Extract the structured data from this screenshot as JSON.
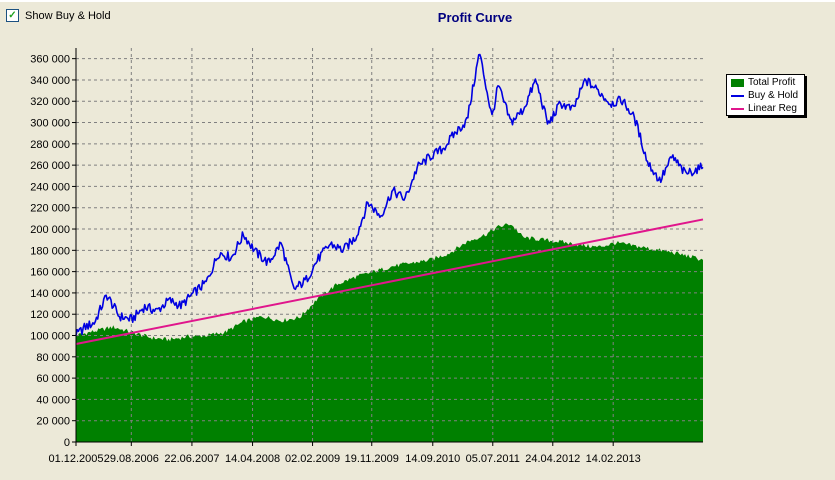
{
  "controls": {
    "show_buy_hold_label": "Show Buy & Hold",
    "show_buy_hold_checked": true,
    "check_mark": "✓"
  },
  "colors": {
    "background": "#ECE9D8",
    "plot_background": "#ECE9D8",
    "total_profit": "#008000",
    "buy_hold": "#0000E0",
    "linear_reg": "#E0168C",
    "grid": "#808080",
    "title": "#000080"
  },
  "chart_data": {
    "type": "area",
    "title": "Profit Curve",
    "xlabel": "",
    "ylabel": "",
    "xlim": [
      "2005-12-01",
      "2014-04-30"
    ],
    "ylim": [
      0,
      370000
    ],
    "y_ticks": [
      0,
      20000,
      40000,
      60000,
      80000,
      100000,
      120000,
      140000,
      160000,
      180000,
      200000,
      220000,
      240000,
      260000,
      280000,
      300000,
      320000,
      340000,
      360000
    ],
    "y_tick_labels": [
      "0",
      "20 000",
      "40 000",
      "60 000",
      "80 000",
      "100 000",
      "120 000",
      "140 000",
      "160 000",
      "180 000",
      "200 000",
      "220 000",
      "240 000",
      "260 000",
      "280 000",
      "300 000",
      "320 000",
      "340 000",
      "360 000"
    ],
    "x_ticks": [
      "2005-12-01",
      "2006-08-29",
      "2007-06-22",
      "2008-04-14",
      "2009-02-02",
      "2009-11-19",
      "2010-09-14",
      "2011-07-05",
      "2012-04-24",
      "2013-02-14"
    ],
    "x_tick_labels": [
      "01.12.2005",
      "29.08.2006",
      "22.06.2007",
      "14.04.2008",
      "02.02.2009",
      "19.11.2009",
      "14.09.2010",
      "05.07.2011",
      "24.04.2012",
      "14.02.2013"
    ],
    "grid": true,
    "legend_position": "right",
    "series": [
      {
        "name": "Total Profit",
        "style": "area",
        "x": [
          "2005-12-01",
          "2006-03-01",
          "2006-06-01",
          "2006-09-01",
          "2006-12-01",
          "2007-03-01",
          "2007-06-01",
          "2007-09-01",
          "2007-12-01",
          "2008-03-01",
          "2008-06-01",
          "2008-09-01",
          "2008-12-01",
          "2009-03-01",
          "2009-06-01",
          "2009-09-01",
          "2009-12-01",
          "2010-03-01",
          "2010-06-01",
          "2010-09-01",
          "2010-12-01",
          "2011-03-01",
          "2011-06-01",
          "2011-08-01",
          "2011-10-01",
          "2011-12-01",
          "2012-03-01",
          "2012-06-01",
          "2012-09-01",
          "2012-12-01",
          "2013-03-01",
          "2013-06-01",
          "2013-09-01",
          "2013-12-01",
          "2014-03-01",
          "2014-04-30"
        ],
        "values": [
          100000,
          104000,
          108000,
          103000,
          98000,
          96000,
          99000,
          100000,
          103000,
          113000,
          118000,
          114000,
          117000,
          135000,
          148000,
          155000,
          160000,
          165000,
          168000,
          171000,
          177000,
          188000,
          195000,
          202000,
          205000,
          192000,
          190000,
          188000,
          185000,
          183000,
          187000,
          184000,
          181000,
          178000,
          174000,
          171000
        ]
      },
      {
        "name": "Buy & Hold",
        "style": "line",
        "x": [
          "2005-12-01",
          "2006-01-15",
          "2006-03-01",
          "2006-05-01",
          "2006-07-01",
          "2006-09-01",
          "2006-11-01",
          "2007-01-01",
          "2007-03-01",
          "2007-05-01",
          "2007-07-01",
          "2007-09-01",
          "2007-11-01",
          "2008-01-01",
          "2008-03-01",
          "2008-05-01",
          "2008-07-01",
          "2008-09-01",
          "2008-11-01",
          "2009-01-01",
          "2009-03-01",
          "2009-05-01",
          "2009-07-01",
          "2009-09-01",
          "2009-11-01",
          "2010-01-01",
          "2010-03-01",
          "2010-05-01",
          "2010-07-01",
          "2010-09-01",
          "2010-11-01",
          "2011-01-01",
          "2011-03-01",
          "2011-05-01",
          "2011-07-01",
          "2011-08-01",
          "2011-10-01",
          "2011-12-01",
          "2012-02-01",
          "2012-04-01",
          "2012-06-01",
          "2012-08-01",
          "2012-10-01",
          "2012-12-01",
          "2013-02-01",
          "2013-04-01",
          "2013-06-01",
          "2013-08-01",
          "2013-10-01",
          "2013-12-01",
          "2014-02-01",
          "2014-04-30"
        ],
        "values": [
          100000,
          108000,
          112000,
          138000,
          118000,
          115000,
          127000,
          123000,
          133000,
          128000,
          140000,
          150000,
          178000,
          173000,
          195000,
          178000,
          168000,
          187000,
          143000,
          152000,
          172000,
          186000,
          180000,
          192000,
          225000,
          212000,
          236000,
          228000,
          258000,
          268000,
          275000,
          290000,
          302000,
          366000,
          305000,
          335000,
          300000,
          312000,
          340000,
          298000,
          318000,
          312000,
          340000,
          330000,
          318000,
          321000,
          303000,
          263000,
          245000,
          268000,
          252000,
          258000
        ]
      },
      {
        "name": "Linear Reg",
        "style": "line",
        "x": [
          "2005-12-01",
          "2014-04-30"
        ],
        "values": [
          92000,
          209000
        ]
      }
    ]
  }
}
